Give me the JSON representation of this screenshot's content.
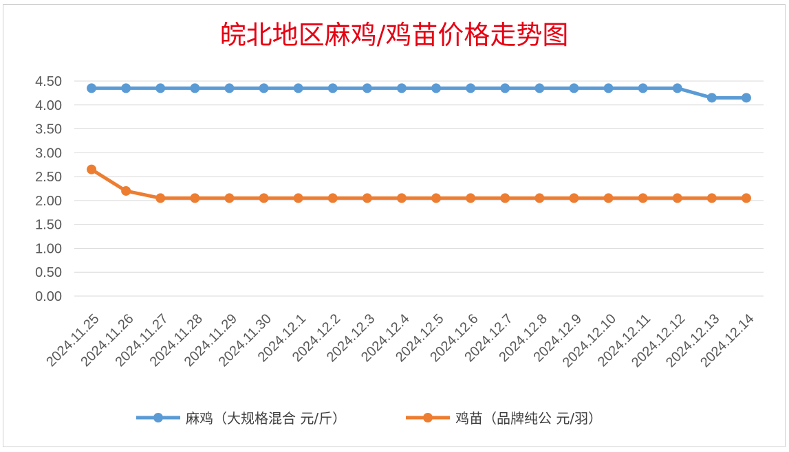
{
  "chart_data": {
    "type": "line",
    "title": "皖北地区麻鸡/鸡苗价格走势图",
    "categories": [
      "2024.11.25",
      "2024.11.26",
      "2024.11.27",
      "2024.11.28",
      "2024.11.29",
      "2024.11.30",
      "2024.12.1",
      "2024.12.2",
      "2024.12.3",
      "2024.12.4",
      "2024.12.5",
      "2024.12.6",
      "2024.12.7",
      "2024.12.8",
      "2024.12.9",
      "2024.12.10",
      "2024.12.11",
      "2024.12.12",
      "2024.12.13",
      "2024.12.14"
    ],
    "series": [
      {
        "name": "麻鸡（大规格混合 元/斤）",
        "color": "#5b9bd5",
        "values": [
          4.35,
          4.35,
          4.35,
          4.35,
          4.35,
          4.35,
          4.35,
          4.35,
          4.35,
          4.35,
          4.35,
          4.35,
          4.35,
          4.35,
          4.35,
          4.35,
          4.35,
          4.35,
          4.15,
          4.15
        ]
      },
      {
        "name": "鸡苗（品牌纯公 元/羽）",
        "color": "#ed7d31",
        "values": [
          2.65,
          2.2,
          2.05,
          2.05,
          2.05,
          2.05,
          2.05,
          2.05,
          2.05,
          2.05,
          2.05,
          2.05,
          2.05,
          2.05,
          2.05,
          2.05,
          2.05,
          2.05,
          2.05,
          2.05
        ]
      }
    ],
    "yticks": [
      "0.00",
      "0.50",
      "1.00",
      "1.50",
      "2.00",
      "2.50",
      "3.00",
      "3.50",
      "4.00",
      "4.50"
    ],
    "ylim": [
      0,
      4.5
    ],
    "grid": true,
    "legend_position": "bottom",
    "xlabel": "",
    "ylabel": ""
  }
}
